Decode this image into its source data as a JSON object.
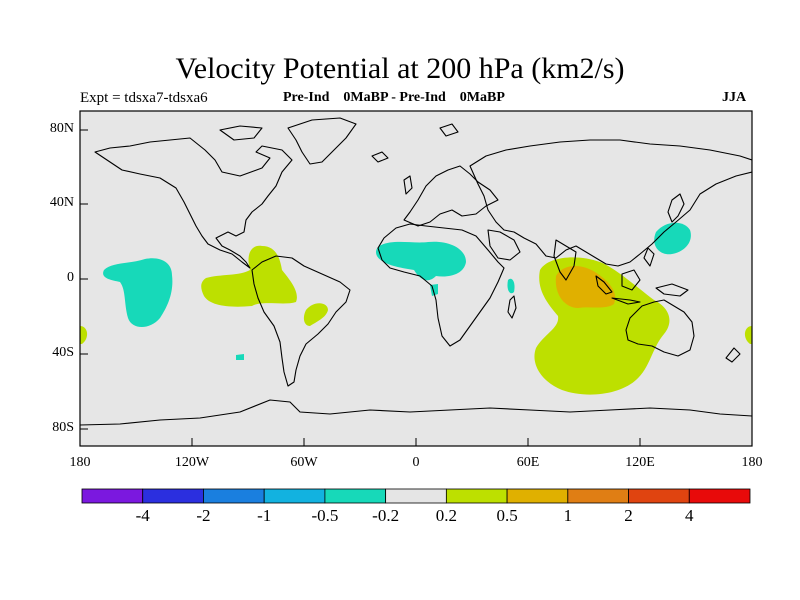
{
  "title": "Velocity Potential at 200 hPa (km2/s)",
  "experiment": "Expt = tdsxa7-tdsxa6",
  "comparison": "Pre-Ind    0MaBP - Pre-Ind    0MaBP",
  "season": "JJA",
  "lat_labels": [
    "80N",
    "40N",
    "0",
    "40S",
    "80S"
  ],
  "lon_labels": [
    "180",
    "120W",
    "60W",
    "0",
    "60E",
    "120E",
    "180"
  ],
  "colorbar": {
    "colors": [
      "#7b18df",
      "#2b2fdf",
      "#1a7fdf",
      "#12b2e0",
      "#17d9b9",
      "#e5e5e5",
      "#bde000",
      "#e0b000",
      "#e07e14",
      "#e04410",
      "#e80a0a"
    ],
    "labels": [
      "-4",
      "-2",
      "-1",
      "-0.5",
      "-0.2",
      "0.2",
      "0.5",
      "1",
      "2",
      "4"
    ]
  },
  "colors": {
    "ocean": "#e6e6e6",
    "negative_fill": "#17d9b9",
    "positive_fill": "#bde000",
    "strong_positive_fill": "#e0b000"
  }
}
